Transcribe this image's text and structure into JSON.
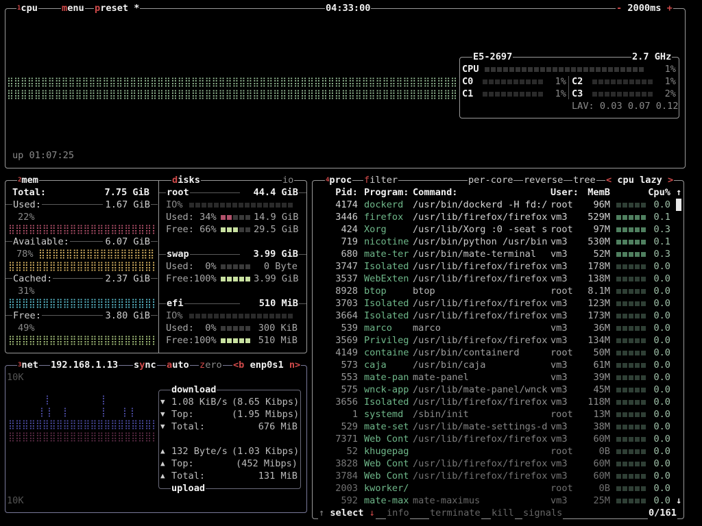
{
  "colors": {
    "hotkey": "#d04a4a",
    "cpu_graph": "#8fb58f",
    "used": "#b0506a",
    "available": "#d4b060",
    "cached": "#58b8c8",
    "free": "#a4c07a",
    "net_download": "#4a4aa0",
    "net_upload": "#5a2a44",
    "proc_name": "#6fb88a"
  },
  "cpu": {
    "title_num": "1",
    "title": "cpu",
    "menu": "menu",
    "menu_hk": "m",
    "preset": "preset *",
    "preset_hk": "p",
    "clock": "04:33:00",
    "rate_minus": "-",
    "rate": "2000ms",
    "rate_plus": "+",
    "uptime": "up 01:07:25",
    "model": "E5-2697",
    "freq": "2.7 GHz",
    "total_label": "CPU",
    "total_pct": "1%",
    "total_value": 1,
    "cores": [
      {
        "label": "C0",
        "pct": "1%",
        "value": 1
      },
      {
        "label": "C1",
        "pct": "1%",
        "value": 1
      },
      {
        "label": "C2",
        "pct": "1%",
        "value": 1
      },
      {
        "label": "C3",
        "pct": "2%",
        "value": 2
      }
    ],
    "lav": "LAV: 0.03 0.07 0.12"
  },
  "mem": {
    "title_num": "2",
    "title": "mem",
    "total_label": "Total:",
    "total": "7.75 GiB",
    "used_label": "Used:",
    "used": "1.67 GiB",
    "used_pct": "22%",
    "available_label": "Available:",
    "available": "6.07 GiB",
    "available_pct": "78%",
    "cached_label": "Cached:",
    "cached": "2.37 GiB",
    "cached_pct": "31%",
    "free_label": "Free:",
    "free": "3.80 GiB",
    "free_pct": "49%"
  },
  "disks": {
    "title": "disks",
    "title_hk": "d",
    "io": "io",
    "items": [
      {
        "name": "root",
        "size": "44.4 GiB",
        "io_label": "IO%",
        "used_label": "Used: 34%",
        "used": "14.9 GiB",
        "used_value": 34,
        "free_label": "Free: 66%",
        "free": "29.5 GiB",
        "free_value": 66
      },
      {
        "name": "swap",
        "size": "3.99 GiB",
        "used_label": "Used:  0%",
        "used": "0 Byte",
        "used_value": 0,
        "free_label": "Free:100%",
        "free": "3.99 GiB",
        "free_value": 100
      },
      {
        "name": "efi",
        "size": "510 MiB",
        "io_label": "IO%",
        "used_label": "Used:  0%",
        "used": "300 KiB",
        "used_value": 0,
        "free_label": "Free:100%",
        "free": "510 MiB",
        "free_value": 100
      }
    ]
  },
  "net": {
    "title_num": "3",
    "title": "net",
    "ip": "192.168.1.13",
    "sync": "sync",
    "sync_hk": "y",
    "auto": "auto",
    "auto_hk": "a",
    "zero": "zero",
    "zero_hk": "z",
    "prev": "<b",
    "iface": "enp0s1",
    "next": "n>",
    "scale_top": "10K",
    "scale_bottom": "10K",
    "download_title": "download",
    "upload_title": "upload",
    "download": [
      {
        "arrow": "▼",
        "label": "1.08 KiB/s",
        "value": "(8.65 Kibps)"
      },
      {
        "arrow": "▼",
        "label": "Top:",
        "value": "(1.95 Mibps)"
      },
      {
        "arrow": "▼",
        "label": "Total:",
        "value": "676 MiB"
      }
    ],
    "upload": [
      {
        "arrow": "▲",
        "label": "132 Byte/s",
        "value": "(1.03 Kibps)"
      },
      {
        "arrow": "▲",
        "label": "Top:",
        "value": "(452 Mibps)"
      },
      {
        "arrow": "▲",
        "label": "Total:",
        "value": "131 MiB"
      }
    ]
  },
  "proc": {
    "title_num": "4",
    "title": "proc",
    "filter": "filter",
    "filter_hk": "f",
    "per_core": "per-core",
    "reverse": "reverse",
    "tree": "tree",
    "sort_prev": "<",
    "sort": "cpu lazy",
    "sort_next": ">",
    "headers": {
      "pid": "Pid:",
      "program": "Program:",
      "command": "Command:",
      "user": "User:",
      "mem": "MemB",
      "cpu": "Cpu%"
    },
    "rows": [
      {
        "pid": "4174",
        "program": "dockerd",
        "command": "/usr/bin/dockerd -H fd:/",
        "user": "root",
        "mem": "96M",
        "cpu": "0.0"
      },
      {
        "pid": "3446",
        "program": "firefox",
        "command": "/usr/lib/firefox/firefox",
        "user": "vm3",
        "mem": "529M",
        "cpu": "0.1"
      },
      {
        "pid": "424",
        "program": "Xorg",
        "command": "/usr/lib/Xorg :0 -seat s",
        "user": "root",
        "mem": "97M",
        "cpu": "0.3"
      },
      {
        "pid": "719",
        "program": "nicotine",
        "command": "/usr/bin/python /usr/bin",
        "user": "vm3",
        "mem": "530M",
        "cpu": "0.1"
      },
      {
        "pid": "680",
        "program": "mate-ter",
        "command": "/usr/bin/mate-terminal",
        "user": "vm3",
        "mem": "52M",
        "cpu": "0.3"
      },
      {
        "pid": "3747",
        "program": "Isolated",
        "command": "/usr/lib/firefox/firefox",
        "user": "vm3",
        "mem": "178M",
        "cpu": "0.0"
      },
      {
        "pid": "3537",
        "program": "WebExten",
        "command": "/usr/lib/firefox/firefox",
        "user": "vm3",
        "mem": "138M",
        "cpu": "0.0"
      },
      {
        "pid": "8928",
        "program": "btop",
        "command": "btop",
        "user": "root",
        "mem": "8.1M",
        "cpu": "0.0"
      },
      {
        "pid": "3703",
        "program": "Isolated",
        "command": "/usr/lib/firefox/firefox",
        "user": "vm3",
        "mem": "123M",
        "cpu": "0.0"
      },
      {
        "pid": "3664",
        "program": "Isolated",
        "command": "/usr/lib/firefox/firefox",
        "user": "vm3",
        "mem": "173M",
        "cpu": "0.0"
      },
      {
        "pid": "539",
        "program": "marco",
        "command": "marco",
        "user": "vm3",
        "mem": "36M",
        "cpu": "0.0"
      },
      {
        "pid": "3569",
        "program": "Privileg",
        "command": "/usr/lib/firefox/firefox",
        "user": "vm3",
        "mem": "134M",
        "cpu": "0.0"
      },
      {
        "pid": "4149",
        "program": "containe",
        "command": "/usr/bin/containerd",
        "user": "root",
        "mem": "50M",
        "cpu": "0.0"
      },
      {
        "pid": "573",
        "program": "caja",
        "command": "/usr/bin/caja",
        "user": "vm3",
        "mem": "61M",
        "cpu": "0.0"
      },
      {
        "pid": "553",
        "program": "mate-pan",
        "command": "mate-panel",
        "user": "vm3",
        "mem": "39M",
        "cpu": "0.0"
      },
      {
        "pid": "575",
        "program": "wnck-app",
        "command": "/usr/lib/mate-panel/wnck",
        "user": "vm3",
        "mem": "45M",
        "cpu": "0.0"
      },
      {
        "pid": "3656",
        "program": "Isolated",
        "command": "/usr/lib/firefox/firefox",
        "user": "vm3",
        "mem": "118M",
        "cpu": "0.0"
      },
      {
        "pid": "1",
        "program": "systemd",
        "command": "/sbin/init",
        "user": "root",
        "mem": "13M",
        "cpu": "0.0"
      },
      {
        "pid": "529",
        "program": "mate-set",
        "command": "/usr/lib/mate-settings-d",
        "user": "vm3",
        "mem": "38M",
        "cpu": "0.0"
      },
      {
        "pid": "7371",
        "program": "Web Cont",
        "command": "/usr/lib/firefox/firefox",
        "user": "vm3",
        "mem": "60M",
        "cpu": "0.0"
      },
      {
        "pid": "52",
        "program": "khugepag",
        "command": "",
        "user": "root",
        "mem": "0B",
        "cpu": "0.0"
      },
      {
        "pid": "3828",
        "program": "Web Cont",
        "command": "/usr/lib/firefox/firefox",
        "user": "vm3",
        "mem": "60M",
        "cpu": "0.0"
      },
      {
        "pid": "3784",
        "program": "Web Cont",
        "command": "/usr/lib/firefox/firefox",
        "user": "vm3",
        "mem": "60M",
        "cpu": "0.0"
      },
      {
        "pid": "2003",
        "program": "kworker/",
        "command": "",
        "user": "root",
        "mem": "0B",
        "cpu": "0.0"
      },
      {
        "pid": "592",
        "program": "mate-max",
        "command": "mate-maximus",
        "user": "vm3",
        "mem": "25M",
        "cpu": "0.0"
      }
    ],
    "scroll_up": "↑",
    "scroll_down": "↓",
    "footer": {
      "up": "↑",
      "select": "select",
      "down": "↓",
      "info": "info",
      "terminate": "terminate",
      "kill": "kill",
      "signals": "signals",
      "count": "0/161"
    }
  }
}
